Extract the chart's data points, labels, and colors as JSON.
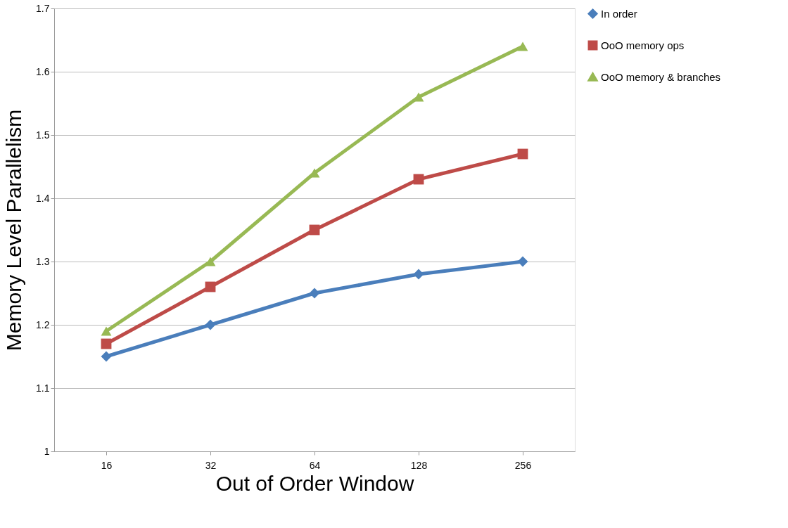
{
  "chart_data": {
    "type": "line",
    "xlabel": "Out of Order Window",
    "ylabel": "Memory Level Parallelism",
    "categories": [
      "16",
      "32",
      "64",
      "128",
      "256"
    ],
    "series": [
      {
        "name": "In order",
        "color": "#4a7ebb",
        "marker": "diamond",
        "values": [
          1.15,
          1.2,
          1.25,
          1.28,
          1.3
        ]
      },
      {
        "name": "OoO memory ops",
        "color": "#be4b48",
        "marker": "square",
        "values": [
          1.17,
          1.26,
          1.35,
          1.43,
          1.47
        ]
      },
      {
        "name": "OoO memory & branches",
        "color": "#98b954",
        "marker": "triangle",
        "values": [
          1.19,
          1.3,
          1.44,
          1.56,
          1.64
        ]
      }
    ],
    "ylim": [
      1,
      1.7
    ],
    "yticks": [
      1,
      1.1,
      1.2,
      1.3,
      1.4,
      1.5,
      1.6,
      1.7
    ],
    "grid": "y",
    "legend": "right",
    "line_style": "solid"
  }
}
